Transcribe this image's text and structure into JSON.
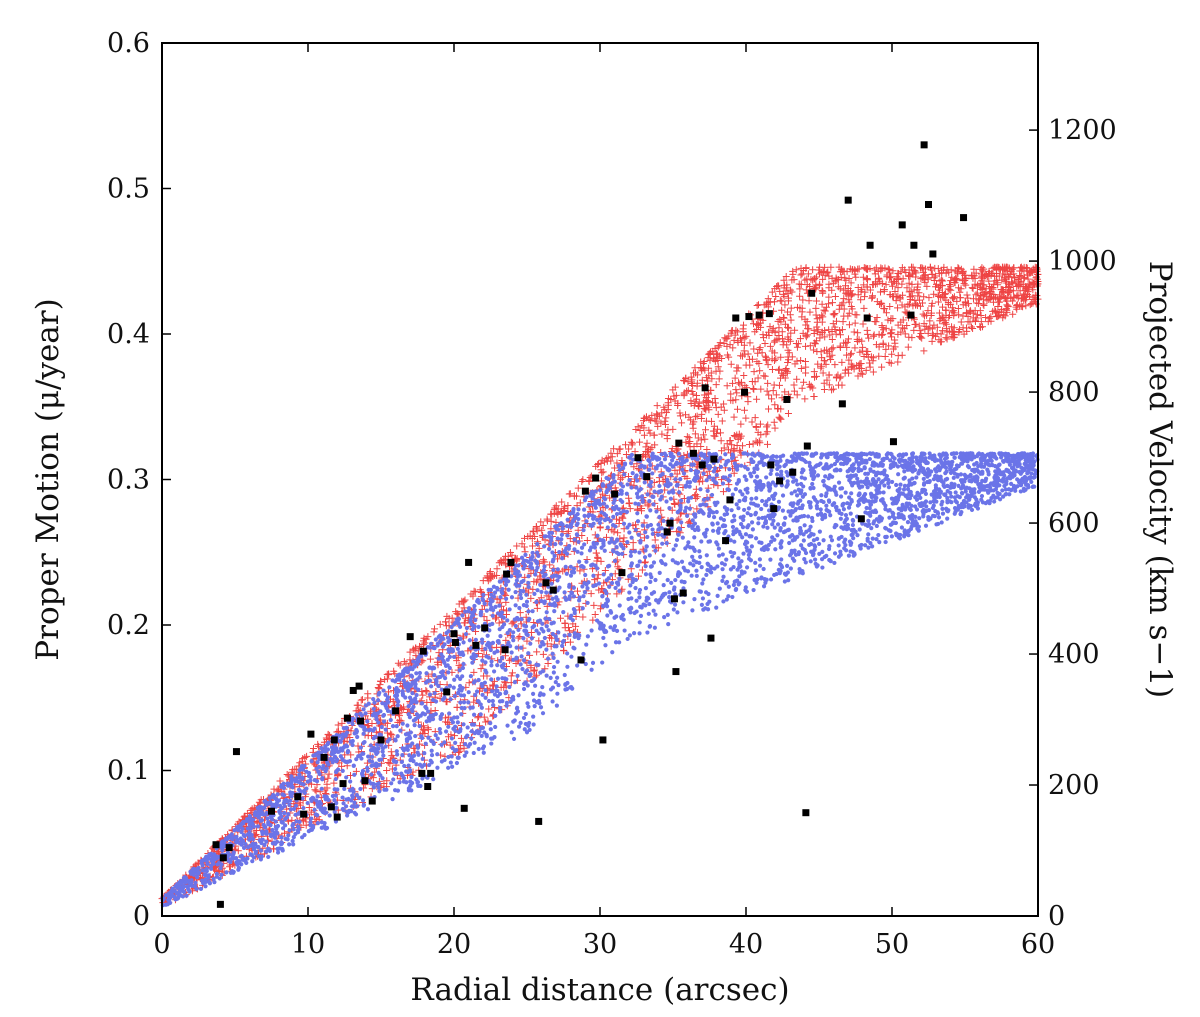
{
  "chart_data": {
    "type": "scatter",
    "title": "",
    "xlabel": "Radial distance (arcsec)",
    "ylabel": "Proper Motion (μ/year)",
    "y2label": "Projected Velocity (km s−1)",
    "xlim": [
      0,
      60
    ],
    "ylim": [
      0,
      0.6
    ],
    "y2lim": [
      0,
      1333
    ],
    "grid": false,
    "legend": "none",
    "x_ticks": [
      "0",
      "10",
      "20",
      "30",
      "40",
      "50",
      "60"
    ],
    "y_ticks": [
      "0",
      "0.1",
      "0.2",
      "0.3",
      "0.4",
      "0.5",
      "0.6"
    ],
    "y2_ticks": [
      "0",
      "200",
      "400",
      "600",
      "800",
      "1000",
      "1200"
    ],
    "colors": {
      "model_a": "#ee4444",
      "model_b": "#6b74e8",
      "observed": "#000000"
    },
    "series": [
      {
        "marker": "plus",
        "color": "#ee4444",
        "model": {
          "n": 3200,
          "seed": 11,
          "slope": 0.01,
          "plateau": 0.446,
          "plateau_start": 41,
          "spread_max": 0.105,
          "x_max": 60
        }
      },
      {
        "marker": "dot",
        "color": "#6b74e8",
        "model": {
          "n": 4200,
          "seed": 29,
          "slope": 0.0095,
          "plateau": 0.318,
          "plateau_start": 33,
          "spread_max": 0.125,
          "x_max": 60
        }
      },
      {
        "marker": "square",
        "color": "#000000",
        "points": [
          [
            3.7,
            0.049
          ],
          [
            4.0,
            0.008
          ],
          [
            4.2,
            0.04
          ],
          [
            4.6,
            0.047
          ],
          [
            5.1,
            0.113
          ],
          [
            7.5,
            0.072
          ],
          [
            9.3,
            0.082
          ],
          [
            9.7,
            0.07
          ],
          [
            10.2,
            0.125
          ],
          [
            11.1,
            0.109
          ],
          [
            11.6,
            0.075
          ],
          [
            11.8,
            0.121
          ],
          [
            12.0,
            0.068
          ],
          [
            12.4,
            0.091
          ],
          [
            12.7,
            0.136
          ],
          [
            13.1,
            0.155
          ],
          [
            13.5,
            0.158
          ],
          [
            13.9,
            0.093
          ],
          [
            13.6,
            0.134
          ],
          [
            14.4,
            0.079
          ],
          [
            15.0,
            0.121
          ],
          [
            16.0,
            0.141
          ],
          [
            17.0,
            0.192
          ],
          [
            17.8,
            0.098
          ],
          [
            18.2,
            0.089
          ],
          [
            18.4,
            0.098
          ],
          [
            17.9,
            0.182
          ],
          [
            19.5,
            0.154
          ],
          [
            20.0,
            0.194
          ],
          [
            20.1,
            0.188
          ],
          [
            20.7,
            0.074
          ],
          [
            21.0,
            0.243
          ],
          [
            21.5,
            0.186
          ],
          [
            22.1,
            0.198
          ],
          [
            23.6,
            0.235
          ],
          [
            23.9,
            0.243
          ],
          [
            23.5,
            0.183
          ],
          [
            25.8,
            0.065
          ],
          [
            26.3,
            0.229
          ],
          [
            26.8,
            0.224
          ],
          [
            28.7,
            0.176
          ],
          [
            29.0,
            0.292
          ],
          [
            29.7,
            0.301
          ],
          [
            30.2,
            0.121
          ],
          [
            31.0,
            0.29
          ],
          [
            31.5,
            0.236
          ],
          [
            32.6,
            0.315
          ],
          [
            33.2,
            0.302
          ],
          [
            35.2,
            0.168
          ],
          [
            35.4,
            0.325
          ],
          [
            35.7,
            0.222
          ],
          [
            35.1,
            0.218
          ],
          [
            34.8,
            0.27
          ],
          [
            34.6,
            0.264
          ],
          [
            36.4,
            0.318
          ],
          [
            37.0,
            0.31
          ],
          [
            37.2,
            0.363
          ],
          [
            37.6,
            0.191
          ],
          [
            37.8,
            0.314
          ],
          [
            38.6,
            0.258
          ],
          [
            38.9,
            0.286
          ],
          [
            39.3,
            0.411
          ],
          [
            39.9,
            0.36
          ],
          [
            40.2,
            0.412
          ],
          [
            40.9,
            0.413
          ],
          [
            41.6,
            0.414
          ],
          [
            41.9,
            0.28
          ],
          [
            42.3,
            0.299
          ],
          [
            41.7,
            0.31
          ],
          [
            42.8,
            0.355
          ],
          [
            43.2,
            0.305
          ],
          [
            44.2,
            0.323
          ],
          [
            44.5,
            0.428
          ],
          [
            44.1,
            0.071
          ],
          [
            46.6,
            0.352
          ],
          [
            47.0,
            0.492
          ],
          [
            47.9,
            0.273
          ],
          [
            48.3,
            0.411
          ],
          [
            48.5,
            0.461
          ],
          [
            50.1,
            0.326
          ],
          [
            50.7,
            0.475
          ],
          [
            51.3,
            0.413
          ],
          [
            51.5,
            0.461
          ],
          [
            52.2,
            0.53
          ],
          [
            52.5,
            0.489
          ],
          [
            52.8,
            0.455
          ],
          [
            54.9,
            0.48
          ]
        ]
      }
    ]
  }
}
